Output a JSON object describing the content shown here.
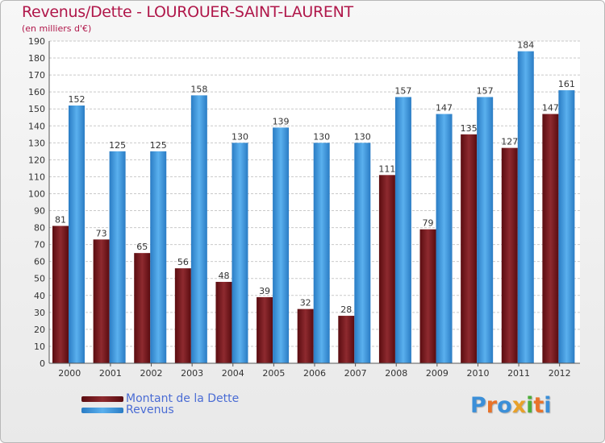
{
  "chart_data": {
    "type": "bar",
    "title": "Revenus/Dette - LOUROUER-SAINT-LAURENT",
    "subtitle": "(en milliers d'€)",
    "categories": [
      "2000",
      "2001",
      "2002",
      "2003",
      "2004",
      "2005",
      "2006",
      "2007",
      "2008",
      "2009",
      "2010",
      "2011",
      "2012"
    ],
    "series": [
      {
        "name": "Montant de la Dette",
        "color": "#7a1a1f",
        "values": [
          81,
          73,
          65,
          56,
          48,
          39,
          32,
          28,
          111,
          79,
          135,
          127,
          147
        ]
      },
      {
        "name": "Revenus",
        "color": "#3d9ae0",
        "values": [
          152,
          125,
          125,
          158,
          130,
          139,
          130,
          130,
          157,
          147,
          157,
          184,
          161
        ]
      }
    ],
    "ylim": [
      0,
      190
    ],
    "yticks": [
      0,
      10,
      20,
      30,
      40,
      50,
      60,
      70,
      80,
      90,
      100,
      110,
      120,
      130,
      140,
      150,
      160,
      170,
      180,
      190
    ],
    "grid": true,
    "legend_position": "bottom-left",
    "xlabel": "",
    "ylabel": ""
  },
  "logo": {
    "letters": [
      {
        "ch": "P",
        "color": "#3b8fd8"
      },
      {
        "ch": "r",
        "color": "#e8732a"
      },
      {
        "ch": "o",
        "color": "#3b8fd8"
      },
      {
        "ch": "x",
        "color": "#e8a12a"
      },
      {
        "ch": "i",
        "color": "#4cae3a"
      },
      {
        "ch": "t",
        "color": "#e8732a"
      },
      {
        "ch": "i",
        "color": "#3b8fd8"
      }
    ]
  }
}
